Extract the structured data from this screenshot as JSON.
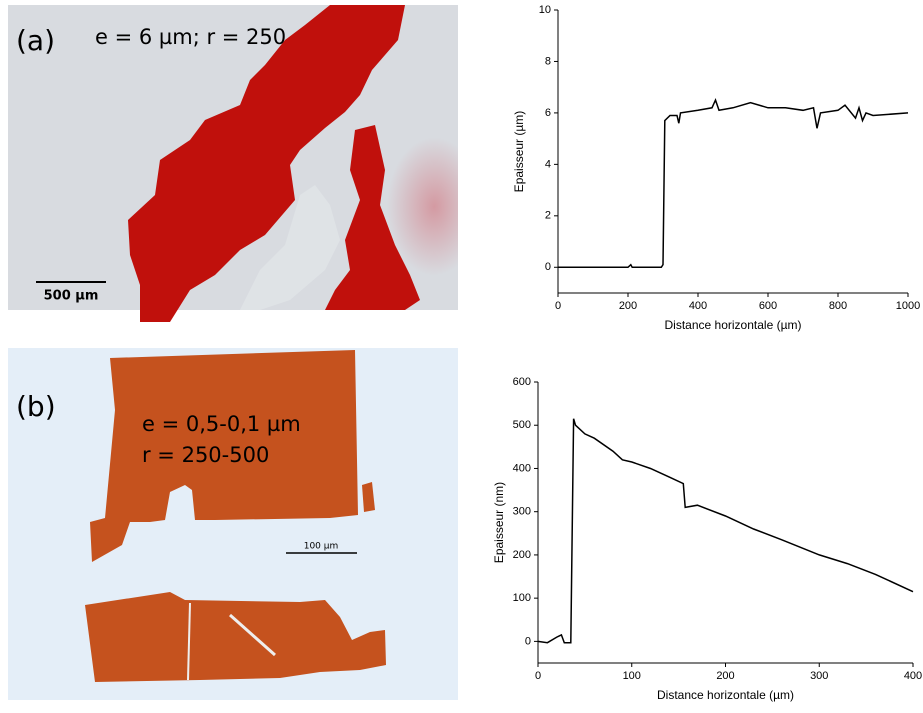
{
  "panels": [
    {
      "label": "(a)",
      "annotation": [
        "e = 6 µm; r = 250"
      ],
      "scale_bar": "500 µm"
    },
    {
      "label": "(b)",
      "annotation": [
        "e = 0,5-0,1 µm",
        "r = 250-500"
      ],
      "scale_bar": "100 µm"
    }
  ],
  "chart_data": [
    {
      "type": "line",
      "x_label": "Distance horizontale (µm)",
      "y_label": "Epaisseur (µm)",
      "color": "#000000",
      "x": [
        0,
        100,
        200,
        208,
        212,
        220,
        295,
        300,
        305,
        320,
        340,
        345,
        350,
        400,
        440,
        450,
        460,
        500,
        550,
        600,
        650,
        700,
        730,
        740,
        750,
        800,
        820,
        850,
        860,
        870,
        880,
        900,
        1000
      ],
      "values": [
        0,
        0,
        0,
        0.1,
        0,
        0,
        0,
        0.1,
        5.7,
        5.9,
        5.9,
        5.6,
        6.0,
        6.1,
        6.2,
        6.5,
        6.1,
        6.2,
        6.4,
        6.2,
        6.2,
        6.1,
        6.2,
        5.4,
        6.0,
        6.1,
        6.3,
        5.8,
        6.2,
        5.7,
        6.0,
        5.9,
        6.0
      ],
      "xlim": [
        0,
        1000
      ],
      "xticks": [
        0,
        200,
        400,
        600,
        800,
        1000
      ],
      "ylim": [
        -1,
        10
      ],
      "yticks": [
        0,
        2,
        4,
        6,
        8,
        10
      ]
    },
    {
      "type": "line",
      "x_label": "Distance horizontale (µm)",
      "y_label": "Epaisseur (nm)",
      "color": "#000000",
      "x": [
        0,
        10,
        20,
        25,
        28,
        35,
        38,
        40,
        50,
        60,
        80,
        90,
        100,
        120,
        140,
        155,
        157,
        170,
        200,
        230,
        260,
        300,
        330,
        360,
        400
      ],
      "values": [
        0,
        -3,
        10,
        15,
        -3,
        -3,
        515,
        500,
        480,
        470,
        440,
        420,
        415,
        400,
        380,
        365,
        310,
        315,
        290,
        260,
        235,
        200,
        180,
        155,
        115
      ],
      "xlim": [
        0,
        400
      ],
      "xticks": [
        0,
        100,
        200,
        300,
        400
      ],
      "ylim": [
        -50,
        600
      ],
      "yticks": [
        0,
        100,
        200,
        300,
        400,
        500,
        600
      ]
    }
  ]
}
